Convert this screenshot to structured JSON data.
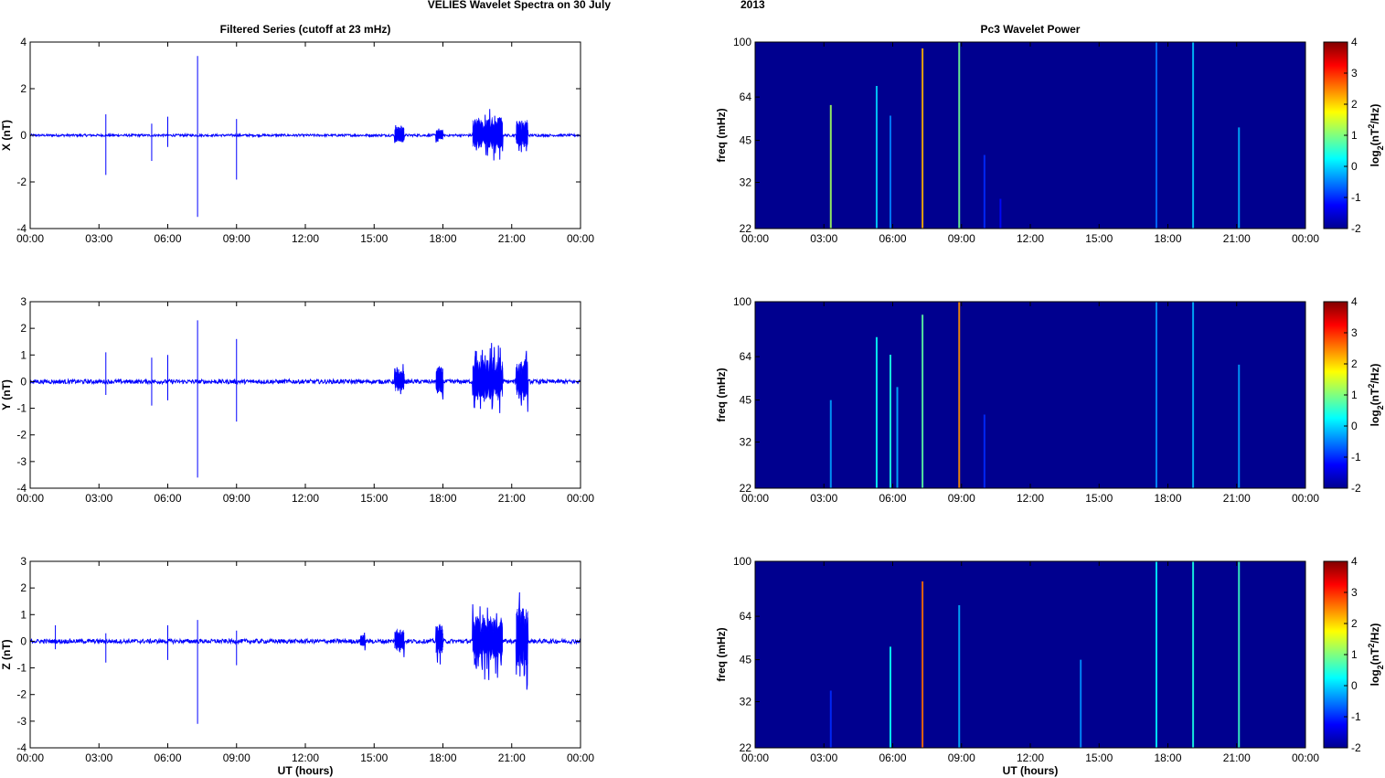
{
  "figure": {
    "title_station": "VELIES Wavelet Spectra on 30 July",
    "title_year": "2013",
    "colors": {
      "trace": "#0000ff",
      "spectrogram_background": "#00008f",
      "axis": "#000000"
    }
  },
  "chart_data": [
    {
      "type": "line",
      "title": "Filtered Series (cutoff at 23 mHz)",
      "ylabel": "X (nT)",
      "xlabel": "",
      "x_ticks": [
        "00:00",
        "03:00",
        "06:00",
        "09:00",
        "12:00",
        "15:00",
        "18:00",
        "21:00",
        "00:00"
      ],
      "xlim_hours": [
        0,
        24
      ],
      "ylim": [
        -4,
        4
      ],
      "y_ticks": [
        "4",
        "2",
        "0",
        "-2",
        "-4"
      ],
      "y_tick_values": [
        4,
        2,
        0,
        -2,
        -4
      ],
      "noise_level": 0.05,
      "spikes": [
        {
          "t": 3.3,
          "y": [
            -1.7,
            0.9
          ]
        },
        {
          "t": 5.3,
          "y": [
            -1.1,
            0.5
          ]
        },
        {
          "t": 6.0,
          "y": [
            -0.5,
            0.8
          ]
        },
        {
          "t": 7.3,
          "y": [
            -3.5,
            3.4
          ]
        },
        {
          "t": 9.0,
          "y": [
            -1.9,
            0.7
          ]
        }
      ],
      "bursts": [
        {
          "t0": 15.9,
          "t1": 16.3,
          "amp": 0.6
        },
        {
          "t0": 17.7,
          "t1": 18.0,
          "amp": 0.4
        },
        {
          "t0": 19.3,
          "t1": 20.6,
          "amp": 1.3
        },
        {
          "t0": 21.2,
          "t1": 21.7,
          "amp": 1.1
        }
      ]
    },
    {
      "type": "line",
      "title": "",
      "ylabel": "Y (nT)",
      "xlabel": "",
      "x_ticks": [
        "00:00",
        "03:00",
        "06:00",
        "09:00",
        "12:00",
        "15:00",
        "18:00",
        "21:00",
        "00:00"
      ],
      "xlim_hours": [
        0,
        24
      ],
      "ylim": [
        -4,
        3
      ],
      "y_ticks": [
        "3",
        "2",
        "1",
        "0",
        "-1",
        "-2",
        "-3",
        "-4"
      ],
      "y_tick_values": [
        3,
        2,
        1,
        0,
        -1,
        -2,
        -3,
        -4
      ],
      "noise_level": 0.08,
      "spikes": [
        {
          "t": 3.3,
          "y": [
            -0.5,
            1.1
          ]
        },
        {
          "t": 5.3,
          "y": [
            -0.9,
            0.9
          ]
        },
        {
          "t": 6.0,
          "y": [
            -0.7,
            1.0
          ]
        },
        {
          "t": 7.3,
          "y": [
            -3.6,
            2.3
          ]
        },
        {
          "t": 9.0,
          "y": [
            -1.5,
            1.6
          ]
        }
      ],
      "bursts": [
        {
          "t0": 15.9,
          "t1": 16.3,
          "amp": 0.8
        },
        {
          "t0": 17.7,
          "t1": 18.0,
          "amp": 0.9
        },
        {
          "t0": 19.3,
          "t1": 20.6,
          "amp": 1.6
        },
        {
          "t0": 21.2,
          "t1": 21.7,
          "amp": 1.3
        }
      ]
    },
    {
      "type": "line",
      "title": "",
      "ylabel": "Z (nT)",
      "xlabel": "UT (hours)",
      "x_ticks": [
        "00:00",
        "03:00",
        "06:00",
        "09:00",
        "12:00",
        "15:00",
        "18:00",
        "21:00",
        "00:00"
      ],
      "xlim_hours": [
        0,
        24
      ],
      "ylim": [
        -4,
        3
      ],
      "y_ticks": [
        "3",
        "2",
        "1",
        "0",
        "-1",
        "-2",
        "-3",
        "-4"
      ],
      "y_tick_values": [
        3,
        2,
        1,
        0,
        -1,
        -2,
        -3,
        -4
      ],
      "noise_level": 0.08,
      "spikes": [
        {
          "t": 1.1,
          "y": [
            -0.3,
            0.6
          ]
        },
        {
          "t": 3.3,
          "y": [
            -0.8,
            0.3
          ]
        },
        {
          "t": 6.0,
          "y": [
            -0.7,
            0.6
          ]
        },
        {
          "t": 7.3,
          "y": [
            -3.1,
            0.8
          ]
        },
        {
          "t": 9.0,
          "y": [
            -0.9,
            0.4
          ]
        }
      ],
      "bursts": [
        {
          "t0": 14.4,
          "t1": 14.6,
          "amp": 0.4
        },
        {
          "t0": 15.9,
          "t1": 16.3,
          "amp": 0.8
        },
        {
          "t0": 17.7,
          "t1": 18.0,
          "amp": 1.0
        },
        {
          "t0": 19.3,
          "t1": 20.6,
          "amp": 1.6
        },
        {
          "t0": 21.2,
          "t1": 21.7,
          "amp": 2.1
        }
      ]
    },
    {
      "type": "heatmap",
      "title": "Pc3 Wavelet Power",
      "ylabel": "freq (mHz)",
      "xlabel": "",
      "colorbar_label": "log2(nT²/Hz)",
      "x_ticks": [
        "00:00",
        "03:00",
        "06:00",
        "09:00",
        "12:00",
        "15:00",
        "18:00",
        "21:00",
        "00:00"
      ],
      "xlim_hours": [
        0,
        24
      ],
      "y_scale": "log",
      "ylim": [
        22,
        100
      ],
      "y_ticks": [
        "100",
        "64",
        "45",
        "32",
        "22"
      ],
      "y_tick_values": [
        100,
        64,
        45,
        32,
        22
      ],
      "colorbar_range": [
        -2,
        4
      ],
      "colorbar_ticks": [
        "4",
        "3",
        "2",
        "1",
        "0",
        "-1",
        "-2"
      ],
      "colorbar_tick_values": [
        4,
        3,
        2,
        1,
        0,
        -1,
        -2
      ],
      "background_value": -1.85,
      "streaks": [
        {
          "t": 3.3,
          "f_top": 60,
          "value": 1.2
        },
        {
          "t": 5.3,
          "f_top": 70,
          "value": 0.0
        },
        {
          "t": 5.9,
          "f_top": 55,
          "value": -0.5
        },
        {
          "t": 7.3,
          "f_top": 95,
          "value": 2.2
        },
        {
          "t": 8.9,
          "f_top": 100,
          "value": 0.9
        },
        {
          "t": 10.0,
          "f_top": 40,
          "value": -1.0
        },
        {
          "t": 10.7,
          "f_top": 28,
          "value": -1.2
        },
        {
          "t": 17.5,
          "f_top": 100,
          "value": -0.6
        },
        {
          "t": 19.1,
          "f_top": 100,
          "value": -0.1
        },
        {
          "t": 21.1,
          "f_top": 50,
          "value": -0.2
        }
      ]
    },
    {
      "type": "heatmap",
      "title": "",
      "ylabel": "freq (mHz)",
      "xlabel": "",
      "colorbar_label": "log2(nT²/Hz)",
      "x_ticks": [
        "00:00",
        "03:00",
        "06:00",
        "09:00",
        "12:00",
        "15:00",
        "18:00",
        "21:00",
        "00:00"
      ],
      "xlim_hours": [
        0,
        24
      ],
      "y_scale": "log",
      "ylim": [
        22,
        100
      ],
      "y_ticks": [
        "100",
        "64",
        "45",
        "32",
        "22"
      ],
      "y_tick_values": [
        100,
        64,
        45,
        32,
        22
      ],
      "colorbar_range": [
        -2,
        4
      ],
      "colorbar_ticks": [
        "4",
        "3",
        "2",
        "1",
        "0",
        "-1",
        "-2"
      ],
      "colorbar_tick_values": [
        4,
        3,
        2,
        1,
        0,
        -1,
        -2
      ],
      "background_value": -1.85,
      "streaks": [
        {
          "t": 3.3,
          "f_top": 45,
          "value": -0.3
        },
        {
          "t": 5.3,
          "f_top": 75,
          "value": 0.3
        },
        {
          "t": 5.9,
          "f_top": 65,
          "value": 0.4
        },
        {
          "t": 6.2,
          "f_top": 50,
          "value": -0.2
        },
        {
          "t": 7.3,
          "f_top": 90,
          "value": 0.8
        },
        {
          "t": 8.9,
          "f_top": 100,
          "value": 2.4
        },
        {
          "t": 10.0,
          "f_top": 40,
          "value": -1.0
        },
        {
          "t": 17.5,
          "f_top": 100,
          "value": -0.4
        },
        {
          "t": 19.1,
          "f_top": 100,
          "value": -0.2
        },
        {
          "t": 21.1,
          "f_top": 60,
          "value": -0.3
        }
      ]
    },
    {
      "type": "heatmap",
      "title": "",
      "ylabel": "freq (mHz)",
      "xlabel": "UT (hours)",
      "colorbar_label": "log2(nT²/Hz)",
      "x_ticks": [
        "00:00",
        "03:00",
        "06:00",
        "09:00",
        "12:00",
        "15:00",
        "18:00",
        "21:00",
        "00:00"
      ],
      "xlim_hours": [
        0,
        24
      ],
      "y_scale": "log",
      "ylim": [
        22,
        100
      ],
      "y_ticks": [
        "100",
        "64",
        "45",
        "32",
        "22"
      ],
      "y_tick_values": [
        100,
        64,
        45,
        32,
        22
      ],
      "colorbar_range": [
        -2,
        4
      ],
      "colorbar_ticks": [
        "4",
        "3",
        "2",
        "1",
        "0",
        "-1",
        "-2"
      ],
      "colorbar_tick_values": [
        4,
        3,
        2,
        1,
        0,
        -1,
        -2
      ],
      "background_value": -1.85,
      "streaks": [
        {
          "t": 3.3,
          "f_top": 35,
          "value": -1.0
        },
        {
          "t": 5.9,
          "f_top": 50,
          "value": 0.3
        },
        {
          "t": 7.3,
          "f_top": 85,
          "value": 2.6
        },
        {
          "t": 8.9,
          "f_top": 70,
          "value": -0.2
        },
        {
          "t": 14.2,
          "f_top": 45,
          "value": -0.4
        },
        {
          "t": 17.5,
          "f_top": 100,
          "value": 0.2
        },
        {
          "t": 19.1,
          "f_top": 100,
          "value": 0.4
        },
        {
          "t": 21.1,
          "f_top": 100,
          "value": 0.6
        }
      ]
    }
  ]
}
